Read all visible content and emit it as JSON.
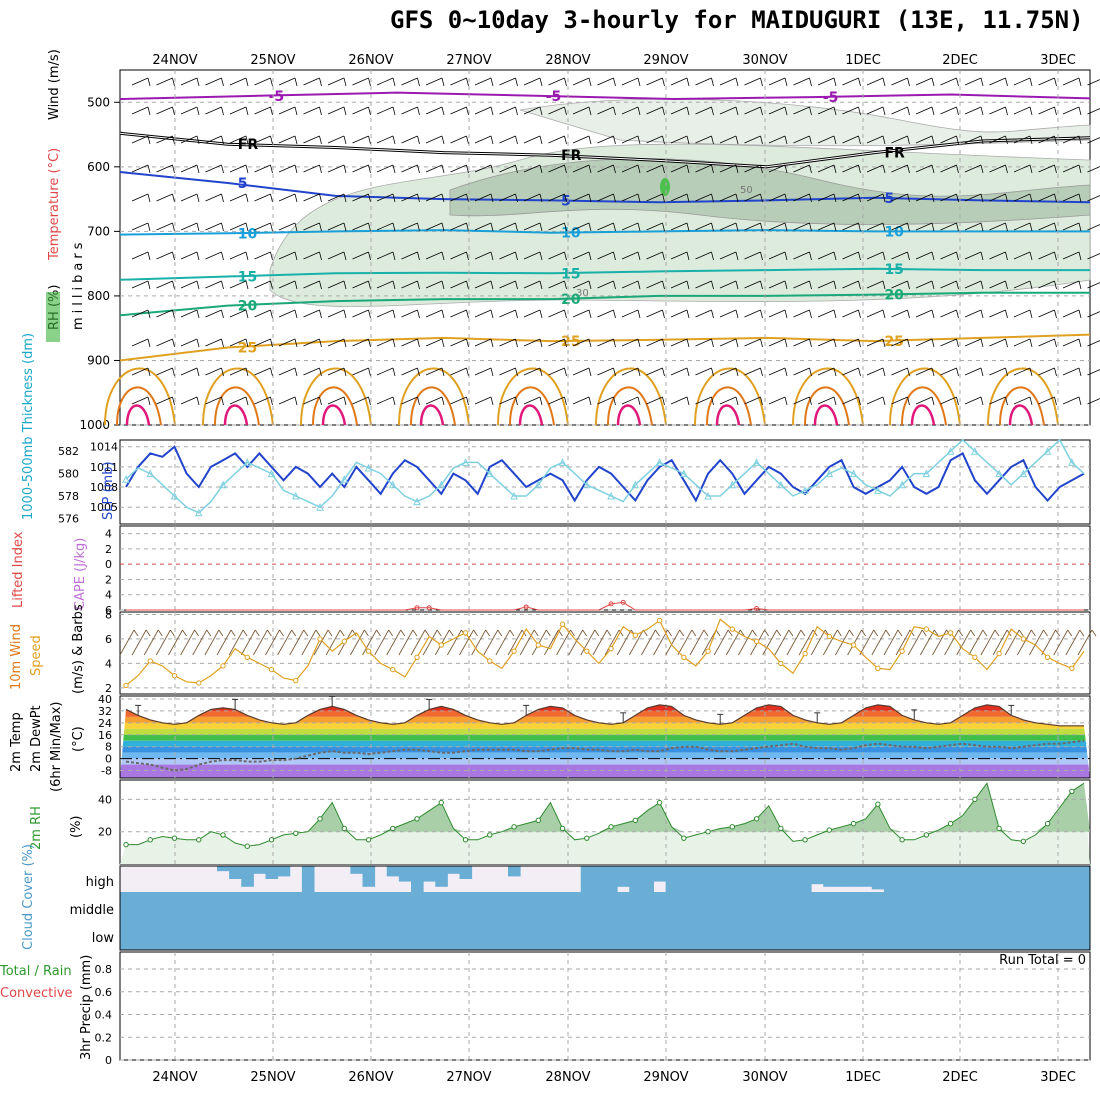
{
  "title": "GFS 0~10day 3-hourly for MAIDUGURI (13E, 11.75N)",
  "dates": [
    "24NOV",
    "25NOV",
    "26NOV",
    "27NOV",
    "28NOV",
    "29NOV",
    "30NOV",
    "1DEC",
    "2DEC",
    "3DEC"
  ],
  "colors": {
    "purple": "#9a1ab0",
    "blue": "#2244cc",
    "cyan": "#1aa0d8",
    "teal": "#18b0a8",
    "green": "#1aa878",
    "orange": "#e0a020",
    "darkorange": "#e07818",
    "magenta": "#e0187a",
    "sky": "#7fd0e0",
    "cloud": "#6aaed6"
  },
  "chart_data": [
    {
      "type": "area",
      "name": "upper-air cross section",
      "ylabel": "millibars",
      "side_labels": [
        "Wind (m/s)",
        "Temperature (°C)",
        "RH (%)"
      ],
      "yticks": [
        500,
        600,
        700,
        800,
        900,
        1000
      ],
      "contours": [
        {
          "label": "-5",
          "level_mb": [
            495,
            490,
            485,
            490,
            495,
            492,
            488,
            494
          ]
        },
        {
          "label": "FR",
          "level_mb": [
            548,
            565,
            570,
            578,
            582,
            590,
            600,
            578,
            560,
            555
          ]
        },
        {
          "label": "5",
          "level_mb": [
            608,
            625,
            645,
            650,
            652,
            655,
            652,
            648,
            652,
            655
          ]
        },
        {
          "label": "10",
          "level_mb": [
            705,
            703,
            700,
            698,
            702,
            700,
            698,
            700,
            700,
            700
          ]
        },
        {
          "label": "15",
          "level_mb": [
            775,
            770,
            765,
            764,
            765,
            762,
            760,
            758,
            760,
            760
          ]
        },
        {
          "label": "20",
          "level_mb": [
            830,
            815,
            808,
            805,
            805,
            800,
            800,
            798,
            795,
            795
          ]
        },
        {
          "label": "25",
          "level_mb": [
            900,
            880,
            870,
            865,
            870,
            868,
            865,
            870,
            865,
            860
          ]
        }
      ],
      "rh_labels": [
        "50",
        "30"
      ]
    },
    {
      "type": "line",
      "name": "pressure / thickness",
      "ylabel_left": "1000-500mb Thickness (dm)",
      "ylabel_right": "SLP (mb)",
      "yticks_left": [
        576,
        578,
        580,
        582
      ],
      "yticks_right": [
        1005,
        1008,
        1011,
        1014
      ],
      "series": [
        {
          "name": "SLP",
          "values": [
            1008,
            1011,
            1013,
            1012.5,
            1014,
            1010,
            1008,
            1011,
            1012,
            1013,
            1011,
            1013,
            1011,
            1009,
            1011,
            1010,
            1008,
            1010,
            1008,
            1011,
            1009,
            1007,
            1010,
            1012,
            1011,
            1009,
            1007,
            1010,
            1009,
            1007,
            1011,
            1012,
            1010,
            1008,
            1009,
            1010,
            1009,
            1006,
            1009,
            1011,
            1010,
            1008,
            1006,
            1009,
            1011,
            1012,
            1009,
            1006,
            1010,
            1012,
            1010,
            1007,
            1009,
            1011,
            1010,
            1008,
            1007,
            1009,
            1011,
            1012,
            1008,
            1007,
            1008,
            1009,
            1011,
            1008,
            1007,
            1008,
            1012,
            1013,
            1009,
            1007,
            1009,
            1011,
            1012,
            1008,
            1006,
            1008,
            1009,
            1010
          ]
        },
        {
          "name": "Thickness",
          "values": [
            579.5,
            580.5,
            580,
            579,
            578,
            577,
            576.5,
            577.5,
            579,
            580,
            581,
            580.5,
            580,
            578.5,
            578,
            577.5,
            577,
            578,
            579.5,
            581,
            580.5,
            580,
            579,
            578,
            577.5,
            578,
            579,
            580.5,
            581,
            581,
            580,
            579,
            578,
            578,
            579,
            580.5,
            581,
            580,
            579,
            578.5,
            578,
            577.5,
            579,
            580,
            581,
            580.5,
            580,
            579,
            578,
            578,
            579,
            580,
            581,
            580,
            579,
            578,
            578.5,
            579,
            580,
            580.5,
            580,
            579,
            578.5,
            578,
            579,
            580,
            580,
            581,
            582,
            583,
            582,
            581,
            580,
            579,
            580,
            581,
            582,
            583,
            581,
            580
          ]
        }
      ]
    },
    {
      "type": "line",
      "name": "stability",
      "ylabel_left": "Lifted Index",
      "ylabel_right": "CAPE (J/kg)",
      "yticks": [
        -4,
        -2,
        0,
        2,
        4,
        6
      ],
      "ytick_labels": [
        "4",
        "2",
        "0",
        "2",
        "4",
        "6"
      ],
      "series": [
        {
          "name": "Lifted Index",
          "values": [
            6,
            6,
            6,
            6,
            6,
            6,
            6,
            6,
            6,
            6,
            6,
            6,
            6,
            6,
            6,
            6,
            6,
            6,
            6,
            6,
            6,
            6,
            6,
            6,
            5.7,
            5.7,
            6,
            6,
            6,
            6,
            6,
            6,
            6,
            5.6,
            6,
            6,
            6,
            6,
            6,
            6,
            5.2,
            5.0,
            6,
            6,
            6,
            6,
            6,
            6,
            6,
            6,
            6,
            6,
            5.8,
            6,
            6,
            6,
            6,
            6,
            6,
            6,
            6,
            6,
            6,
            6,
            6,
            6,
            6,
            6,
            6,
            6,
            6,
            6,
            6,
            6,
            6,
            6,
            6,
            6,
            6,
            6
          ]
        }
      ]
    },
    {
      "type": "line",
      "name": "10m wind",
      "ylabel_left": "10m Wind",
      "ylabel_mid": "Speed",
      "ylabel_right": "(m/s) & Barbs",
      "yticks": [
        2,
        4,
        6,
        8
      ],
      "series": [
        {
          "name": "Speed",
          "values": [
            2.2,
            3,
            4.2,
            3.8,
            3,
            2.5,
            2.4,
            3,
            3.8,
            5.2,
            4.5,
            4,
            3.5,
            2.8,
            2.6,
            3.8,
            6,
            5,
            5.8,
            6.5,
            5,
            4,
            3.5,
            2.9,
            4.5,
            6.2,
            5.5,
            6,
            6.5,
            5,
            4.2,
            3.6,
            5,
            6.8,
            5.5,
            5.2,
            7.2,
            6,
            5,
            4,
            5.2,
            7,
            6.3,
            6.8,
            7.5,
            5.5,
            4.5,
            3.8,
            5,
            7.6,
            6.8,
            6.2,
            5.8,
            5.2,
            4,
            3.2,
            4.8,
            7,
            6.2,
            5.8,
            5.5,
            4.5,
            3.6,
            3.5,
            5,
            7,
            6.8,
            6.2,
            6.5,
            5.2,
            4.5,
            3.5,
            4.8,
            6.8,
            6,
            5.5,
            4.5,
            4,
            3.6,
            5
          ]
        }
      ]
    },
    {
      "type": "area",
      "name": "2m temperature",
      "ylabel": "2m Temp / 2m DewPt (6hr Min/Max) (°C)",
      "yticks": [
        -8,
        0,
        8,
        16,
        24,
        32,
        40
      ],
      "series": [
        {
          "name": "Temp",
          "values": [
            33,
            29,
            26,
            24,
            23,
            24,
            29,
            33,
            34,
            33,
            29,
            26,
            24,
            23,
            24,
            29,
            33,
            35,
            33,
            29,
            26,
            24,
            23,
            24,
            29,
            33,
            35,
            33,
            29,
            26,
            24,
            23,
            24,
            29,
            33,
            35,
            34,
            29,
            26,
            24,
            23,
            24,
            29,
            34,
            36,
            35,
            29,
            26,
            24,
            23,
            24,
            29,
            34,
            36,
            35,
            29,
            26,
            24,
            23,
            24,
            29,
            34,
            36,
            35,
            29,
            26,
            24,
            23,
            24,
            29,
            34,
            36,
            35,
            29,
            26,
            24,
            23,
            22,
            22,
            22
          ]
        },
        {
          "name": "DewPt",
          "values": [
            -2,
            -3,
            -4,
            -6,
            -8,
            -7,
            -4,
            -2,
            -1,
            -1,
            -2,
            -2,
            -1,
            -1,
            0,
            2,
            4,
            5,
            4,
            4,
            3,
            4,
            5,
            6,
            6,
            5,
            4,
            4,
            5,
            6,
            6,
            6,
            6,
            5,
            5,
            6,
            7,
            7,
            6,
            6,
            5,
            5,
            6,
            5,
            5,
            7,
            8,
            8,
            6,
            5,
            5,
            6,
            7,
            8,
            9,
            10,
            8,
            7,
            7,
            6,
            7,
            9,
            10,
            9,
            8,
            8,
            7,
            8,
            9,
            10,
            9,
            8,
            8,
            7,
            8,
            9,
            10,
            10,
            11,
            12
          ]
        }
      ]
    },
    {
      "type": "area",
      "name": "2m RH",
      "ylabel": "2m RH (%)",
      "yticks": [
        20,
        40
      ],
      "series": [
        {
          "name": "RH",
          "values": [
            12,
            12,
            15,
            17,
            16,
            15,
            15,
            20,
            18,
            13,
            11,
            12,
            15,
            18,
            19,
            20,
            28,
            38,
            22,
            15,
            15,
            18,
            22,
            25,
            28,
            33,
            38,
            22,
            15,
            15,
            18,
            20,
            23,
            25,
            27,
            38,
            22,
            15,
            16,
            19,
            23,
            25,
            27,
            33,
            38,
            23,
            16,
            18,
            20,
            22,
            23,
            25,
            28,
            36,
            22,
            14,
            15,
            18,
            21,
            23,
            25,
            28,
            37,
            22,
            15,
            15,
            18,
            21,
            25,
            30,
            40,
            50,
            22,
            15,
            14,
            18,
            25,
            35,
            45,
            50
          ]
        }
      ]
    },
    {
      "type": "bar",
      "name": "cloud cover",
      "ylabel": "Cloud Cover (%)",
      "levels": [
        "high",
        "middle",
        "low"
      ],
      "series": [
        {
          "name": "high",
          "values": [
            0,
            0,
            0,
            0,
            0,
            0,
            0,
            0,
            20,
            50,
            80,
            30,
            50,
            40,
            0,
            100,
            0,
            0,
            0,
            30,
            80,
            0,
            40,
            60,
            100,
            60,
            80,
            30,
            50,
            0,
            0,
            0,
            40,
            0,
            0,
            0,
            0,
            0,
            100,
            100,
            100,
            80,
            100,
            100,
            60,
            100,
            100,
            100,
            100,
            100,
            100,
            100,
            100,
            100,
            100,
            100,
            100,
            70,
            80,
            80,
            80,
            80,
            90,
            100,
            100,
            100,
            100,
            100,
            100,
            100,
            100,
            100,
            100,
            100,
            100,
            100,
            100,
            100,
            100,
            100
          ]
        }
      ]
    },
    {
      "type": "bar",
      "name": "precipitation",
      "ylabel": "3hr Precip (mm)",
      "side_labels": [
        "Total / Rain",
        "Convective"
      ],
      "yticks": [
        0,
        0.2,
        0.4,
        0.6,
        0.8
      ],
      "run_total": "Run Total = 0",
      "series": [
        {
          "name": "precip",
          "values": []
        }
      ]
    }
  ]
}
